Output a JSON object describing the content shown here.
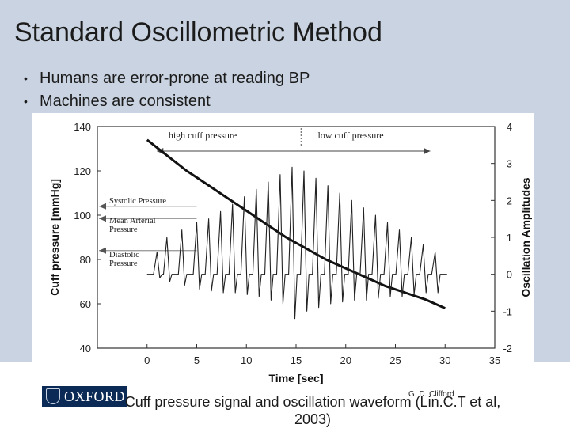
{
  "slide": {
    "title": "Standard Oscillometric Method",
    "bullets": [
      "Humans are error-prone at reading BP",
      "Machines are consistent"
    ],
    "caption_line1": "Cuff pressure signal and oscillation waveform (Lin.C.T et al,",
    "caption_line2": "2003)",
    "author": "G. D. Clifford",
    "logo_text": "OXFORD"
  },
  "chart_data": {
    "type": "line",
    "xlabel": "Time [sec]",
    "ylabel": "Cuff pressure [mmHg]",
    "y2label": "Oscillation Amplitudes",
    "xlim": [
      -5,
      35
    ],
    "ylim": [
      40,
      140
    ],
    "y2lim": [
      -2,
      4
    ],
    "x_ticks": [
      "0",
      "5",
      "10",
      "15",
      "20",
      "25",
      "30",
      "35"
    ],
    "y_ticks": [
      "40",
      "60",
      "80",
      "100",
      "120",
      "140"
    ],
    "y2_ticks": [
      "-2",
      "-1",
      "0",
      "1",
      "2",
      "3",
      "4"
    ],
    "annotations": [
      "high cuff pressure",
      "low cuff pressure",
      "Systolic Pressure",
      "Mean Arterial Pressure",
      "Diastolic Pressure"
    ],
    "series": [
      {
        "name": "Cuff pressure",
        "x": [
          0,
          2,
          4,
          6,
          8,
          10,
          12,
          14,
          16,
          18,
          20,
          22,
          24,
          26,
          28,
          30
        ],
        "y": [
          134,
          127,
          120,
          114,
          108,
          102,
          96,
          90,
          85,
          80,
          76,
          72,
          68,
          65,
          62,
          58
        ]
      },
      {
        "name": "Oscillation amplitude",
        "peaks_x": [
          1,
          2,
          3.5,
          5,
          6.2,
          7.4,
          8.6,
          9.8,
          11,
          12.2,
          13.4,
          14.6,
          15.8,
          17,
          18.2,
          19.4,
          20.6,
          21.8,
          23,
          24.2,
          25.4,
          26.6,
          27.8,
          29
        ],
        "peaks_y": [
          0.6,
          1.0,
          1.2,
          1.4,
          1.5,
          1.7,
          1.9,
          2.1,
          2.3,
          2.5,
          2.7,
          2.9,
          2.8,
          2.6,
          2.4,
          2.2,
          2.0,
          1.8,
          1.6,
          1.4,
          1.2,
          1.0,
          0.8,
          0.6
        ],
        "troughs_y": [
          -0.1,
          -0.2,
          -0.3,
          -0.4,
          -0.45,
          -0.5,
          -0.5,
          -0.55,
          -0.6,
          -0.7,
          -0.8,
          -1.2,
          -1.0,
          -0.9,
          -0.8,
          -0.75,
          -0.7,
          -0.7,
          -0.65,
          -0.6,
          -0.6,
          -0.55,
          -0.5,
          -0.5
        ]
      }
    ]
  }
}
